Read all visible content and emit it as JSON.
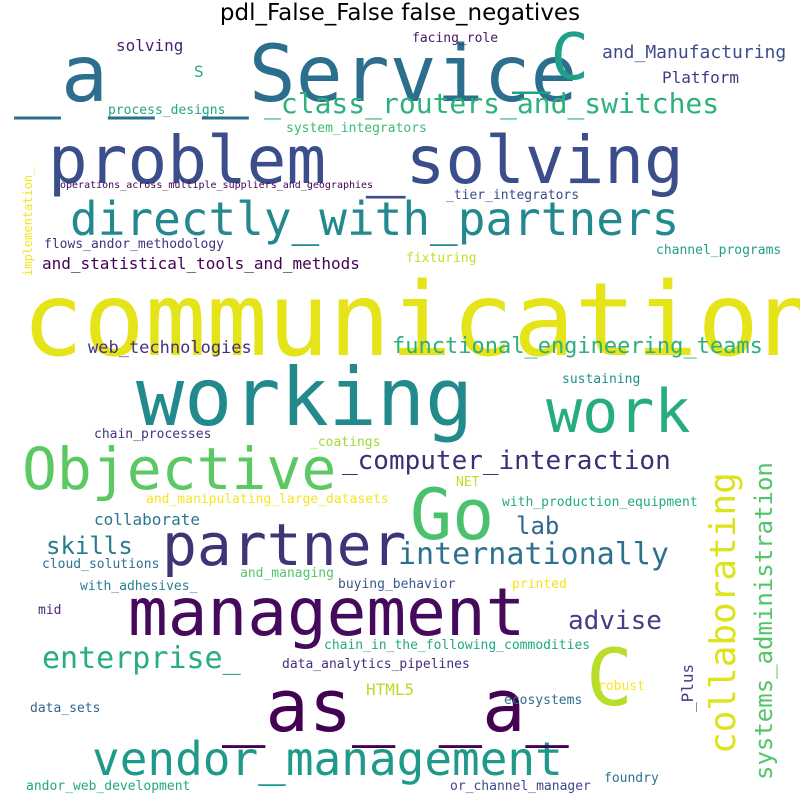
{
  "title": "pdl_False_False false_negatives",
  "palette": {
    "deep_purple": "#440154",
    "indigo": "#3b528b",
    "slate_blue": "#31688e",
    "teal": "#21918c",
    "green_teal": "#1fa187",
    "green": "#35b779",
    "light_green": "#6ece58",
    "lime": "#b5de2b",
    "yellow": "#fde725"
  },
  "words": [
    {
      "text": "communication",
      "color": "#e5e419"
    },
    {
      "text": "problem _solving",
      "color": "#3b4d8a"
    },
    {
      "text": "_a_ _Service",
      "color": "#2c6e8e"
    },
    {
      "text": "working",
      "color": "#228a8d"
    },
    {
      "text": "management",
      "color": "#450a5c"
    },
    {
      "text": "directly_with_partners",
      "color": "#23898e"
    },
    {
      "text": "vendor_management",
      "color": "#1f9a8a"
    },
    {
      "text": "Objective",
      "color": "#5cc863"
    },
    {
      "text": "partner",
      "color": "#3e3577"
    },
    {
      "text": "work",
      "color": "#25ac82"
    },
    {
      "text": "_as_ _a_",
      "color": "#440154"
    },
    {
      "text": "Go",
      "color": "#4ac16d"
    },
    {
      "text": "C",
      "color": "#b8de29"
    },
    {
      "text": "_C",
      "color": "#1fa187"
    },
    {
      "text": "collaborating",
      "color": "#dde318"
    },
    {
      "text": "systems_administration",
      "color": "#52c569"
    },
    {
      "text": "internationally",
      "color": "#2c728e"
    },
    {
      "text": "_class_routers_and_switches",
      "color": "#2db27d"
    },
    {
      "text": "enterprise_",
      "color": "#27ad81"
    },
    {
      "text": "_computer_interaction",
      "color": "#3f2d76"
    },
    {
      "text": "functional_engineering_teams",
      "color": "#2ab07f"
    },
    {
      "text": "and_statistical_tools_and_methods",
      "color": "#440154"
    },
    {
      "text": "skills",
      "color": "#287c8e"
    },
    {
      "text": "advise",
      "color": "#433e85"
    },
    {
      "text": "lab",
      "color": "#31678e"
    },
    {
      "text": "and_Manufacturing",
      "color": "#3e4c8a"
    },
    {
      "text": "web_technologies",
      "color": "#46317e"
    },
    {
      "text": "collaborate",
      "color": "#2a788e"
    },
    {
      "text": "solving",
      "color": "#482173"
    },
    {
      "text": "Platform",
      "color": "#453882"
    },
    {
      "text": "HTML5",
      "color": "#b5de2b"
    },
    {
      "text": "_Plus",
      "color": "#424086"
    },
    {
      "text": "S",
      "color": "#25ab82"
    },
    {
      "text": "process_designs",
      "color": "#21a685"
    },
    {
      "text": "system_integrators",
      "color": "#3bbb75"
    },
    {
      "text": "operations_across_multiple_suppliers_and_geographies",
      "color": "#440154"
    },
    {
      "text": "_tier_integrators",
      "color": "#3e4989"
    },
    {
      "text": "facing_role",
      "color": "#481769"
    },
    {
      "text": "implementation_",
      "color": "#f1e51d"
    },
    {
      "text": "flows_andor_methodology",
      "color": "#46307e"
    },
    {
      "text": "fixturing",
      "color": "#c2df23"
    },
    {
      "text": "channel_programs",
      "color": "#1f9f88"
    },
    {
      "text": "sustaining",
      "color": "#218f8d"
    },
    {
      "text": "chain_processes",
      "color": "#46337f"
    },
    {
      "text": "_coatings",
      "color": "#a0da39"
    },
    {
      "text": "and_manipulating_large_datasets",
      "color": "#f6e620"
    },
    {
      "text": "NET",
      "color": "#bddf26"
    },
    {
      "text": "with_production_equipment",
      "color": "#23a983"
    },
    {
      "text": "cloud_solutions",
      "color": "#2c738e"
    },
    {
      "text": "and_managing",
      "color": "#54c568"
    },
    {
      "text": "with_adhesives_",
      "color": "#277f8e"
    },
    {
      "text": "buying_behavior",
      "color": "#39568c"
    },
    {
      "text": "printed",
      "color": "#f1e51d"
    },
    {
      "text": "mid",
      "color": "#482677"
    },
    {
      "text": "chain_in_the_following_commodities",
      "color": "#22a785"
    },
    {
      "text": "data_analytics_pipelines",
      "color": "#472d7b"
    },
    {
      "text": "robust",
      "color": "#f8e621"
    },
    {
      "text": "ecosystems",
      "color": "#2e6f8e"
    },
    {
      "text": "data_sets",
      "color": "#31668e"
    },
    {
      "text": "andor_web_development",
      "color": "#22a785"
    },
    {
      "text": "or_channel_manager",
      "color": "#3f4788"
    },
    {
      "text": "foundry",
      "color": "#2b748e"
    }
  ]
}
